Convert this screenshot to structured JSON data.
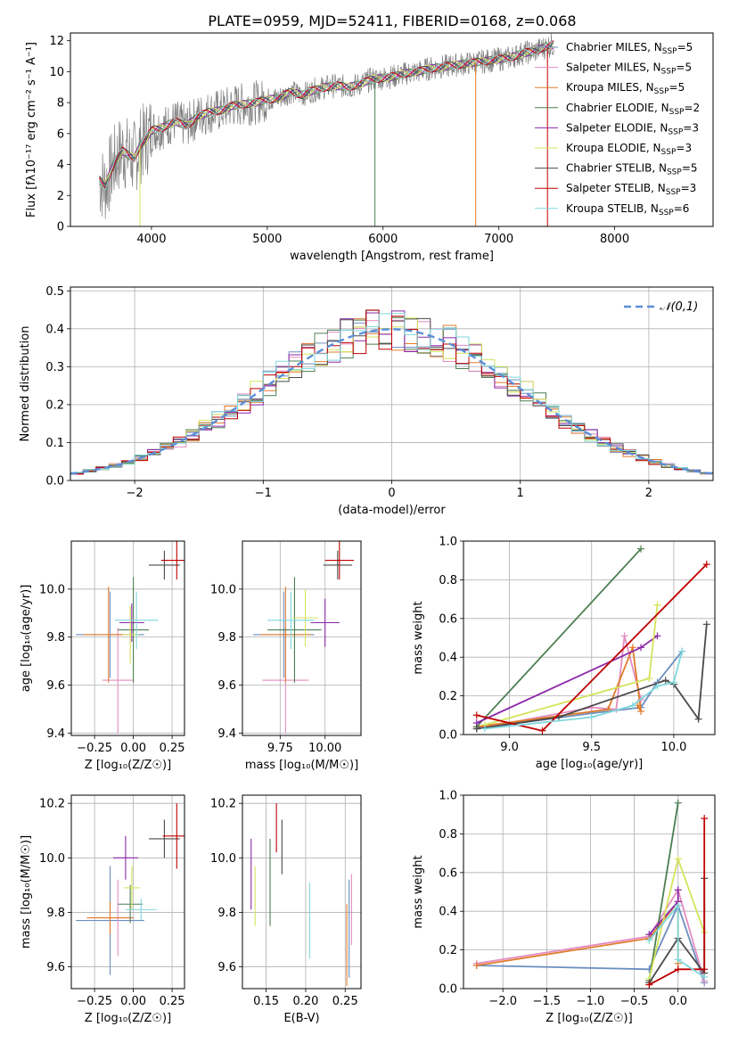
{
  "figure": {
    "title": "PLATE=0959, MJD=52411, FIBERID=0168, z=0.068"
  },
  "models": [
    {
      "name": "Chabrier MILES",
      "nssp": 5,
      "color": "#6c8ebf"
    },
    {
      "name": "Salpeter MILES",
      "nssp": 5,
      "color": "#e38cc1"
    },
    {
      "name": "Kroupa MILES",
      "nssp": 5,
      "color": "#e07b2b"
    },
    {
      "name": "Chabrier ELODIE",
      "nssp": 2,
      "color": "#4c7f52"
    },
    {
      "name": "Salpeter ELODIE",
      "nssp": 3,
      "color": "#8c28a8"
    },
    {
      "name": "Kroupa ELODIE",
      "nssp": 3,
      "color": "#d4e35a"
    },
    {
      "name": "Chabrier STELIB",
      "nssp": 5,
      "color": "#4a4a4a"
    },
    {
      "name": "Salpeter STELIB",
      "nssp": 3,
      "color": "#c00000"
    },
    {
      "name": "Kroupa STELIB",
      "nssp": 6,
      "color": "#7fd7dd"
    }
  ],
  "chart_data": [
    {
      "id": "spectrum",
      "type": "line",
      "title": "PLATE=0959, MJD=52411, FIBERID=0168, z=0.068",
      "xlabel": "wavelength [Angstrom, rest frame]",
      "ylabel": "Flux [fλ10⁻¹⁷ erg cm⁻² s⁻¹ A⁻¹]",
      "xlim": [
        3300,
        8850
      ],
      "ylim": [
        0,
        12.5
      ],
      "xticks": [
        4000,
        5000,
        6000,
        7000,
        8000
      ],
      "yticks": [
        0,
        2,
        4,
        6,
        8,
        10,
        12
      ],
      "legend_position": "right",
      "data_color": "#808080",
      "data_x": [
        3550,
        3600,
        3650,
        3700,
        3750,
        3800,
        3850,
        3900,
        3950,
        4000,
        4100,
        4200,
        4300,
        4400,
        4500,
        4600,
        4700,
        4800,
        4900,
        5000,
        5100,
        5200,
        5300,
        5400,
        5500,
        5600,
        5700,
        5800,
        5900,
        6000,
        6100,
        6200,
        6300,
        6400,
        6500,
        6600,
        6700,
        6800,
        6900,
        7000,
        7100,
        7200,
        7300,
        7400,
        7500
      ],
      "data_y": [
        3.0,
        2.6,
        3.6,
        4.4,
        4.9,
        4.6,
        4.4,
        5.2,
        5.6,
        6.2,
        6.4,
        6.8,
        6.5,
        7.1,
        7.4,
        7.5,
        7.8,
        7.9,
        8.0,
        8.2,
        8.3,
        8.7,
        8.5,
        8.8,
        9.0,
        9.1,
        9.0,
        9.2,
        9.5,
        9.6,
        9.7,
        9.9,
        10.0,
        10.2,
        10.3,
        10.4,
        10.5,
        10.6,
        10.7,
        10.8,
        10.9,
        11.2,
        11.3,
        11.6,
        11.8
      ]
    },
    {
      "id": "residuals",
      "type": "bar",
      "xlabel": "(data-model)/error",
      "ylabel": "Normed distribution",
      "xlim": [
        -2.5,
        2.5
      ],
      "ylim": [
        0,
        0.51
      ],
      "xticks": [
        -2,
        -1,
        0,
        1,
        2
      ],
      "yticks": [
        0.0,
        0.1,
        0.2,
        0.3,
        0.4,
        0.5
      ],
      "bin_width": 0.1,
      "bin_start": -2.5,
      "legend": "𝒩(0,1)",
      "legend_position": "top-right",
      "gaussian_color": "#5b8fd8",
      "grid": true
    },
    {
      "id": "age-vs-z",
      "type": "scatter",
      "xlabel": "Z [log₁₀(Z/Z☉)]",
      "ylabel": "age  [log₁₀(age/yr)]",
      "xlim": [
        -0.4,
        0.33
      ],
      "ylim": [
        9.39,
        10.2
      ],
      "xticks": [
        -0.25,
        0.0,
        0.25
      ],
      "yticks": [
        9.4,
        9.6,
        9.8,
        10.0
      ],
      "grid": true,
      "points": [
        {
          "x": -0.15,
          "y": 9.81,
          "xerr": 0.22,
          "yerr": 0.18
        },
        {
          "x": -0.1,
          "y": 9.62,
          "xerr": 0.1,
          "yerr": 0.22
        },
        {
          "x": -0.16,
          "y": 9.81,
          "xerr": 0.16,
          "yerr": 0.2
        },
        {
          "x": 0.0,
          "y": 9.83,
          "xerr": 0.1,
          "yerr": 0.22
        },
        {
          "x": -0.01,
          "y": 9.86,
          "xerr": 0.08,
          "yerr": 0.08
        },
        {
          "x": -0.02,
          "y": 9.81,
          "xerr": 0.05,
          "yerr": 0.12
        },
        {
          "x": 0.2,
          "y": 10.1,
          "xerr": 0.1,
          "yerr": 0.06
        },
        {
          "x": 0.28,
          "y": 10.12,
          "xerr": 0.1,
          "yerr": 0.08
        },
        {
          "x": 0.02,
          "y": 9.87,
          "xerr": 0.14,
          "yerr": 0.12
        }
      ]
    },
    {
      "id": "age-vs-mass",
      "type": "scatter",
      "xlabel": "mass [log₁₀(M/M☉)]",
      "ylabel": "",
      "xlim": [
        9.54,
        10.2
      ],
      "ylim": [
        9.39,
        10.2
      ],
      "xticks": [
        9.75,
        10.0
      ],
      "yticks": [
        9.4,
        9.6,
        9.8,
        10.0
      ],
      "grid": true,
      "points": [
        {
          "x": 9.77,
          "y": 9.81,
          "xerr": 0.17,
          "yerr": 0.18
        },
        {
          "x": 9.78,
          "y": 9.62,
          "xerr": 0.13,
          "yerr": 0.22
        },
        {
          "x": 9.78,
          "y": 9.81,
          "xerr": 0.14,
          "yerr": 0.2
        },
        {
          "x": 9.83,
          "y": 9.83,
          "xerr": 0.15,
          "yerr": 0.22
        },
        {
          "x": 10.0,
          "y": 9.86,
          "xerr": 0.08,
          "yerr": 0.1
        },
        {
          "x": 9.89,
          "y": 9.88,
          "xerr": 0.07,
          "yerr": 0.12
        },
        {
          "x": 10.07,
          "y": 10.1,
          "xerr": 0.08,
          "yerr": 0.06
        },
        {
          "x": 10.08,
          "y": 10.12,
          "xerr": 0.08,
          "yerr": 0.08
        },
        {
          "x": 9.81,
          "y": 9.87,
          "xerr": 0.13,
          "yerr": 0.12
        }
      ]
    },
    {
      "id": "massweight-vs-age",
      "type": "line",
      "xlabel": "age  [log₁₀(age/yr)]",
      "ylabel": "mass weight",
      "xlim": [
        8.72,
        10.25
      ],
      "ylim": [
        0,
        1.0
      ],
      "xticks": [
        9.0,
        9.5,
        10.0
      ],
      "yticks": [
        0.0,
        0.2,
        0.4,
        0.6,
        0.8,
        1.0
      ],
      "grid": true,
      "series": [
        {
          "x": [
            8.8,
            9.5,
            9.8,
            9.9,
            10.05
          ],
          "y": [
            0.03,
            0.11,
            0.14,
            0.27,
            0.43
          ]
        },
        {
          "x": [
            8.8,
            9.5,
            9.65,
            9.7,
            9.8
          ],
          "y": [
            0.03,
            0.14,
            0.13,
            0.51,
            0.18
          ]
        },
        {
          "x": [
            8.8,
            9.6,
            9.75,
            9.8,
            9.78
          ],
          "y": [
            0.04,
            0.13,
            0.45,
            0.12,
            0.15
          ]
        },
        {
          "x": [
            8.8,
            9.8
          ],
          "y": [
            0.04,
            0.96
          ]
        },
        {
          "x": [
            8.8,
            9.8,
            9.9
          ],
          "y": [
            0.06,
            0.45,
            0.51
          ]
        },
        {
          "x": [
            8.85,
            9.85,
            9.9
          ],
          "y": [
            0.05,
            0.29,
            0.67
          ]
        },
        {
          "x": [
            8.8,
            9.3,
            9.95,
            10.0,
            10.15,
            10.2
          ],
          "y": [
            0.03,
            0.09,
            0.28,
            0.26,
            0.08,
            0.57
          ]
        },
        {
          "x": [
            8.8,
            9.2,
            10.2
          ],
          "y": [
            0.1,
            0.02,
            0.88
          ]
        },
        {
          "x": [
            8.85,
            9.5,
            9.75,
            9.9,
            10.0,
            10.05
          ],
          "y": [
            0.03,
            0.09,
            0.15,
            0.25,
            0.27,
            0.43
          ]
        }
      ]
    },
    {
      "id": "mass-vs-z",
      "type": "scatter",
      "xlabel": "Z [log₁₀(Z/Z☉)]",
      "ylabel": "mass [log₁₀(M/M☉)]",
      "xlim": [
        -0.4,
        0.33
      ],
      "ylim": [
        9.52,
        10.23
      ],
      "xticks": [
        -0.25,
        0.0,
        0.25
      ],
      "yticks": [
        9.6,
        9.8,
        10.0,
        10.2
      ],
      "grid": true,
      "points": [
        {
          "x": -0.15,
          "y": 9.77,
          "xerr": 0.22,
          "yerr": 0.2
        },
        {
          "x": -0.1,
          "y": 9.78,
          "xerr": 0.1,
          "yerr": 0.14
        },
        {
          "x": -0.15,
          "y": 9.78,
          "xerr": 0.15,
          "yerr": 0.06
        },
        {
          "x": -0.02,
          "y": 9.83,
          "xerr": 0.08,
          "yerr": 0.07
        },
        {
          "x": -0.05,
          "y": 10.0,
          "xerr": 0.08,
          "yerr": 0.08
        },
        {
          "x": -0.01,
          "y": 9.89,
          "xerr": 0.05,
          "yerr": 0.08
        },
        {
          "x": 0.2,
          "y": 10.07,
          "xerr": 0.1,
          "yerr": 0.07
        },
        {
          "x": 0.28,
          "y": 10.08,
          "xerr": 0.09,
          "yerr": 0.12
        },
        {
          "x": 0.05,
          "y": 9.81,
          "xerr": 0.1,
          "yerr": 0.04
        }
      ]
    },
    {
      "id": "mass-vs-ebv",
      "type": "scatter",
      "xlabel": "E(B-V)",
      "ylabel": "",
      "xlim": [
        0.12,
        0.27
      ],
      "ylim": [
        9.52,
        10.23
      ],
      "xticks": [
        0.15,
        0.2,
        0.25
      ],
      "yticks": [
        9.6,
        9.8,
        10.0,
        10.2
      ],
      "grid": true,
      "points": [
        {
          "x": 0.255,
          "y": 9.74,
          "xerr": 0,
          "yerr": 0.18
        },
        {
          "x": 0.258,
          "y": 9.81,
          "xerr": 0,
          "yerr": 0.13
        },
        {
          "x": 0.252,
          "y": 9.68,
          "xerr": 0,
          "yerr": 0.15
        },
        {
          "x": 0.155,
          "y": 9.91,
          "xerr": 0,
          "yerr": 0.16
        },
        {
          "x": 0.131,
          "y": 9.94,
          "xerr": 0,
          "yerr": 0.13
        },
        {
          "x": 0.136,
          "y": 9.86,
          "xerr": 0,
          "yerr": 0.11
        },
        {
          "x": 0.17,
          "y": 10.04,
          "xerr": 0,
          "yerr": 0.1
        },
        {
          "x": 0.163,
          "y": 10.11,
          "xerr": 0,
          "yerr": 0.09
        },
        {
          "x": 0.205,
          "y": 9.77,
          "xerr": 0,
          "yerr": 0.14
        }
      ]
    },
    {
      "id": "massweight-vs-z",
      "type": "line",
      "xlabel": "Z [log₁₀(Z/Z☉)]",
      "ylabel": "mass weight",
      "xlim": [
        -2.45,
        0.42
      ],
      "ylim": [
        0,
        1.0
      ],
      "xticks": [
        -2.0,
        -1.5,
        -1.0,
        -0.5,
        0.0
      ],
      "yticks": [
        0.0,
        0.2,
        0.4,
        0.6,
        0.8,
        1.0
      ],
      "grid": true,
      "series": [
        {
          "x": [
            -2.3,
            -0.33,
            0.0,
            0.3
          ],
          "y": [
            0.12,
            0.1,
            0.43,
            0.03
          ]
        },
        {
          "x": [
            -2.3,
            -0.33,
            0.0,
            0.3
          ],
          "y": [
            0.13,
            0.27,
            0.51,
            0.04
          ]
        },
        {
          "x": [
            -2.3,
            -0.33,
            0.0,
            0.0
          ],
          "y": [
            0.12,
            0.26,
            0.45,
            0.13
          ]
        },
        {
          "x": [
            -0.33,
            0.0
          ],
          "y": [
            0.04,
            0.96
          ]
        },
        {
          "x": [
            -0.33,
            0.0,
            0.0
          ],
          "y": [
            0.28,
            0.45,
            0.51
          ]
        },
        {
          "x": [
            -0.33,
            0.0,
            0.3
          ],
          "y": [
            0.05,
            0.67,
            0.29
          ]
        },
        {
          "x": [
            -0.33,
            0.0,
            0.3,
            0.3
          ],
          "y": [
            0.03,
            0.26,
            0.08,
            0.57
          ]
        },
        {
          "x": [
            -0.33,
            0.0,
            0.3,
            0.3
          ],
          "y": [
            0.02,
            0.1,
            0.1,
            0.88
          ]
        },
        {
          "x": [
            -0.33,
            0.0,
            0.0,
            0.3
          ],
          "y": [
            0.25,
            0.43,
            0.15,
            0.06
          ]
        }
      ]
    }
  ]
}
